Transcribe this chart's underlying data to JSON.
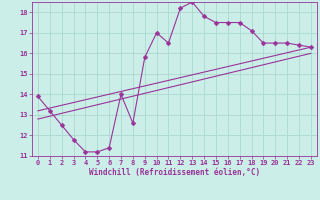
{
  "xlabel": "Windchill (Refroidissement éolien,°C)",
  "bg_color": "#cceee8",
  "grid_color": "#aad8d0",
  "line_color": "#993399",
  "xlim": [
    -0.5,
    23.5
  ],
  "ylim": [
    11,
    18.5
  ],
  "xticks": [
    0,
    1,
    2,
    3,
    4,
    5,
    6,
    7,
    8,
    9,
    10,
    11,
    12,
    13,
    14,
    15,
    16,
    17,
    18,
    19,
    20,
    21,
    22,
    23
  ],
  "yticks": [
    11,
    12,
    13,
    14,
    15,
    16,
    17,
    18
  ],
  "series1_x": [
    0,
    1,
    2,
    3,
    4,
    5,
    6,
    7,
    8,
    9,
    10,
    11,
    12,
    13,
    14,
    15,
    16,
    17,
    18,
    19,
    20,
    21,
    22,
    23
  ],
  "series1_y": [
    13.9,
    13.2,
    12.5,
    11.8,
    11.2,
    11.2,
    11.4,
    14.0,
    12.6,
    15.8,
    17.0,
    16.5,
    18.2,
    18.5,
    17.8,
    17.5,
    17.5,
    17.5,
    17.1,
    16.5,
    16.5,
    16.5,
    16.4,
    16.3
  ],
  "series2_x": [
    0,
    23
  ],
  "series2_y": [
    12.8,
    16.0
  ],
  "series3_x": [
    0,
    23
  ],
  "series3_y": [
    13.2,
    16.3
  ],
  "marker": "D",
  "marker_size": 2.5,
  "linewidth": 0.8,
  "tick_fontsize": 5,
  "xlabel_fontsize": 5.5
}
